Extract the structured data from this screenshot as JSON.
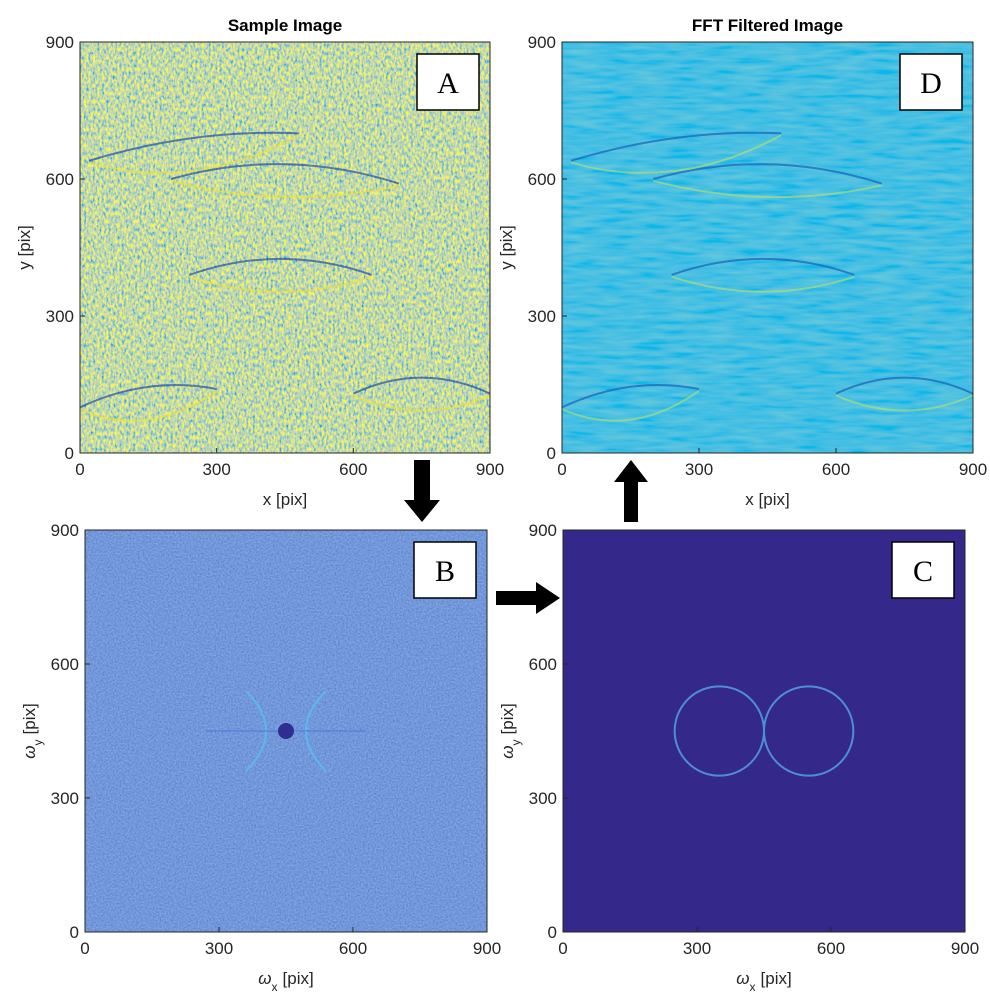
{
  "chart_data": [
    {
      "type": "image",
      "title": "Sample Image",
      "xlabel": "x [pix]",
      "ylabel": "y [pix]",
      "xlim": [
        0,
        900
      ],
      "ylim": [
        0,
        900
      ],
      "xticks": [
        0,
        300,
        600,
        900
      ],
      "yticks": [
        0,
        300,
        600,
        900
      ],
      "panel_label": "A"
    },
    {
      "type": "image",
      "title": "FFT Filtered Image",
      "xlabel": "x [pix]",
      "ylabel": "y [pix]",
      "xlim": [
        0,
        900
      ],
      "ylim": [
        0,
        900
      ],
      "xticks": [
        0,
        300,
        600,
        900
      ],
      "yticks": [
        0,
        300,
        600,
        900
      ],
      "panel_label": "D"
    },
    {
      "type": "image",
      "xlabel": {
        "symbol": "ω",
        "subscript": "x",
        "unit": "[pix]"
      },
      "ylabel": {
        "symbol": "ω",
        "subscript": "y",
        "unit": "[pix]"
      },
      "xlim": [
        0,
        900
      ],
      "ylim": [
        0,
        900
      ],
      "xticks": [
        0,
        300,
        600,
        900
      ],
      "yticks": [
        0,
        300,
        600,
        900
      ],
      "panel_label": "B"
    },
    {
      "type": "image",
      "xlabel": {
        "symbol": "ω",
        "subscript": "x",
        "unit": "[pix]"
      },
      "ylabel": {
        "symbol": "ω",
        "subscript": "y",
        "unit": "[pix]"
      },
      "xlim": [
        0,
        900
      ],
      "ylim": [
        0,
        900
      ],
      "xticks": [
        0,
        300,
        600,
        900
      ],
      "yticks": [
        0,
        300,
        600,
        900
      ],
      "panel_label": "C"
    }
  ]
}
